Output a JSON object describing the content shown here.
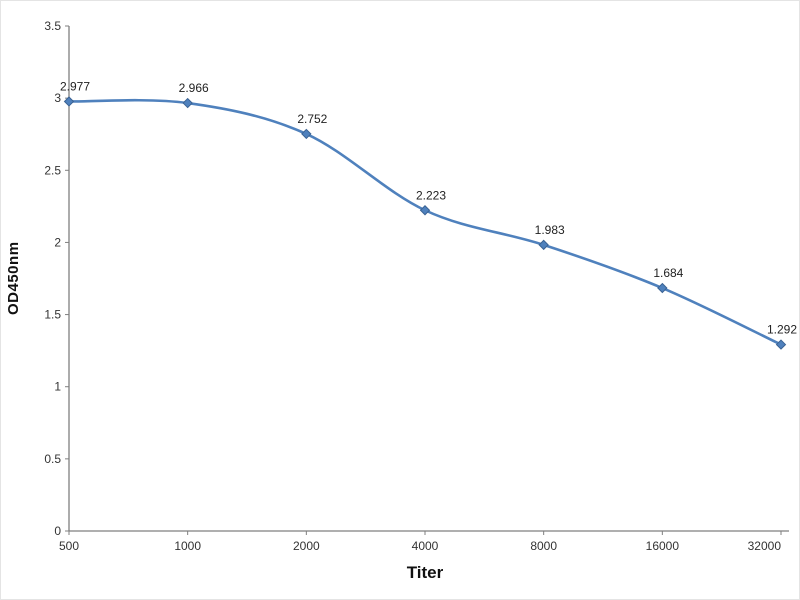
{
  "chart_data": {
    "type": "line",
    "title": "",
    "xlabel": "Titer",
    "ylabel": "OD450nm",
    "categories": [
      "500",
      "1000",
      "2000",
      "4000",
      "8000",
      "16000",
      "32000"
    ],
    "series": [
      {
        "name": "OD450nm",
        "values": [
          2.977,
          2.966,
          2.752,
          2.223,
          1.983,
          1.684,
          1.292
        ]
      }
    ],
    "data_labels": [
      "2.977",
      "2.966",
      "2.752",
      "2.223",
      "1.983",
      "1.684",
      "1.292"
    ],
    "ylim": [
      0,
      3.5
    ],
    "yticks": [
      "0",
      "0.5",
      "1",
      "1.5",
      "2",
      "2.5",
      "3",
      "3.5"
    ],
    "grid": false,
    "legend": "none",
    "smooth": true,
    "marker": "diamond",
    "line_color": "#4f81bd",
    "marker_stroke_color": "#3a6293",
    "axis_color": "#7f7f7f"
  }
}
